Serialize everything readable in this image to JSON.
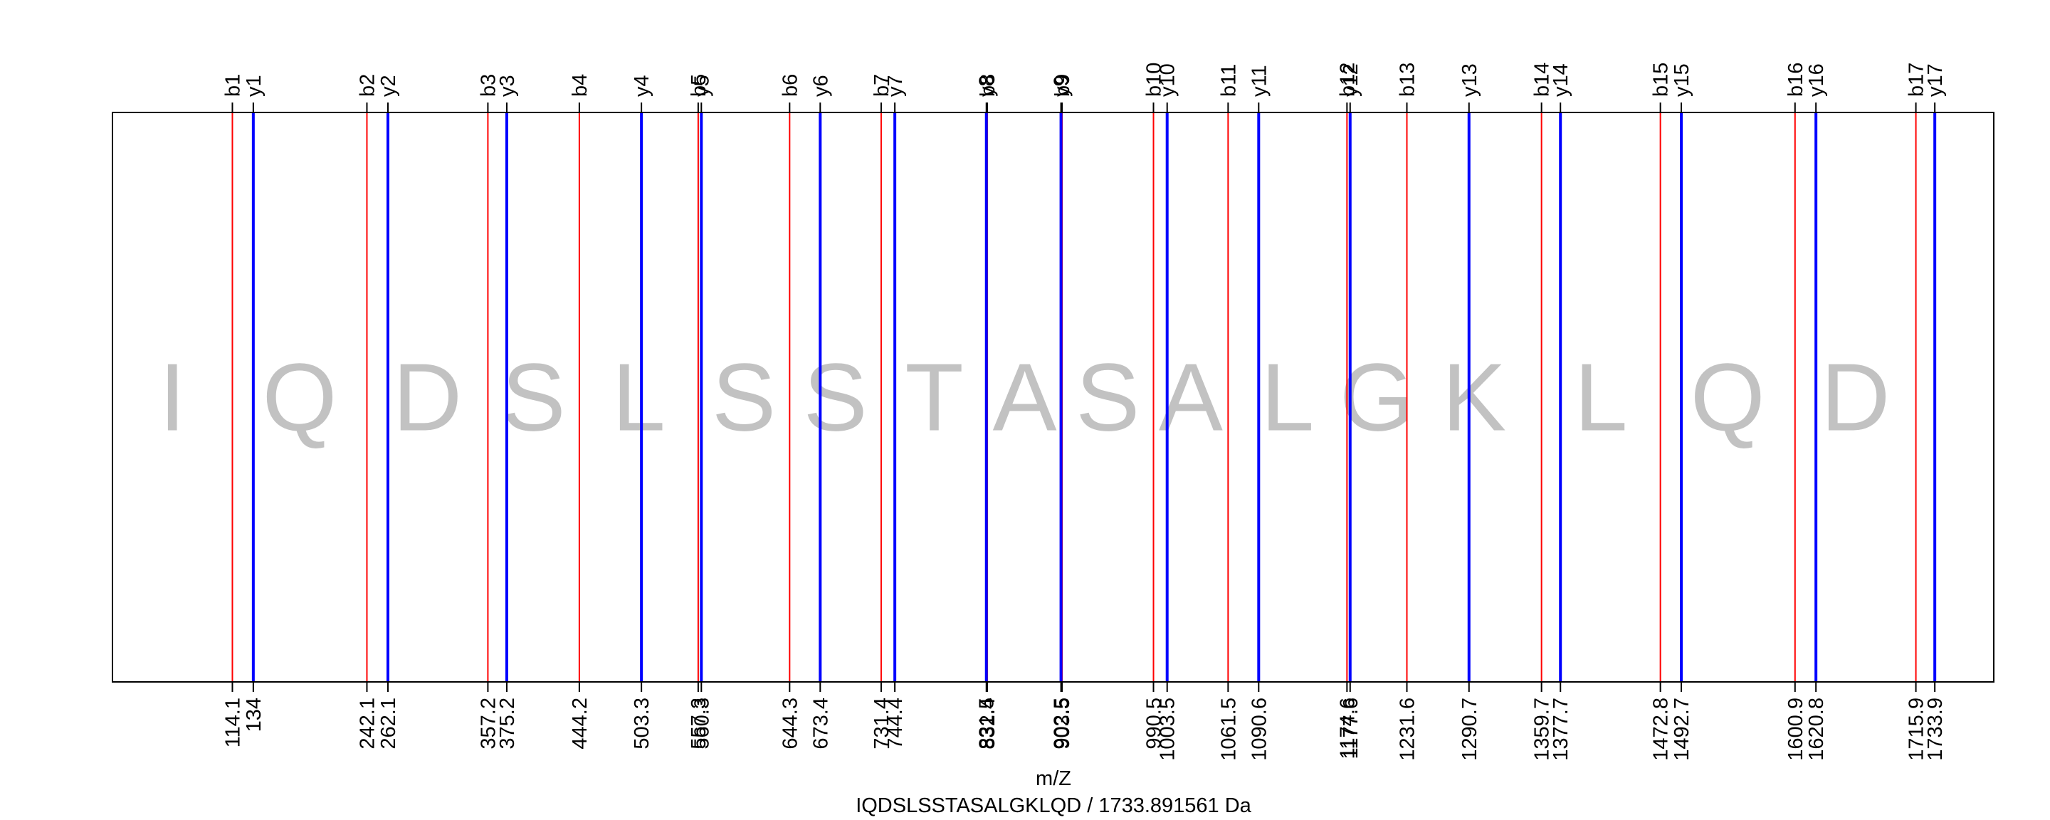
{
  "chart_data": {
    "type": "line",
    "xlabel": "m/Z",
    "subtitle": "IQDSLSSTASALGKLQD / 1733.891561 Da",
    "xlim": [
      0,
      1790
    ],
    "colors": {
      "b": "#ff0000",
      "y": "#0000ff",
      "residue": "#c2c2c2",
      "frame": "#000000"
    },
    "sequence": [
      "I",
      "Q",
      "D",
      "S",
      "L",
      "S",
      "S",
      "T",
      "A",
      "S",
      "A",
      "L",
      "G",
      "K",
      "L",
      "Q",
      "D"
    ],
    "b_ions": [
      {
        "label": "b1",
        "mz": 114.1
      },
      {
        "label": "b2",
        "mz": 242.1
      },
      {
        "label": "b3",
        "mz": 357.2
      },
      {
        "label": "b4",
        "mz": 444.2
      },
      {
        "label": "b5",
        "mz": 557.3
      },
      {
        "label": "b6",
        "mz": 644.3
      },
      {
        "label": "b7",
        "mz": 731.4
      },
      {
        "label": "b8",
        "mz": 832.4
      },
      {
        "label": "b9",
        "mz": 903.5
      },
      {
        "label": "b10",
        "mz": 990.5
      },
      {
        "label": "b11",
        "mz": 1061.5
      },
      {
        "label": "b12",
        "mz": 1174.6
      },
      {
        "label": "b13",
        "mz": 1231.6
      },
      {
        "label": "b14",
        "mz": 1359.7
      },
      {
        "label": "b15",
        "mz": 1472.8
      },
      {
        "label": "b16",
        "mz": 1600.9
      },
      {
        "label": "b17",
        "mz": 1715.9
      }
    ],
    "y_ions": [
      {
        "label": "y1",
        "mz": 134
      },
      {
        "label": "y2",
        "mz": 262.1
      },
      {
        "label": "y3",
        "mz": 375.2
      },
      {
        "label": "y4",
        "mz": 503.3
      },
      {
        "label": "y5",
        "mz": 560.3
      },
      {
        "label": "y6",
        "mz": 673.4
      },
      {
        "label": "y7",
        "mz": 744.4
      },
      {
        "label": "y8",
        "mz": 831.5
      },
      {
        "label": "y9",
        "mz": 902.5
      },
      {
        "label": "y10",
        "mz": 1003.5
      },
      {
        "label": "y11",
        "mz": 1090.6
      },
      {
        "label": "y12",
        "mz": 1177.6
      },
      {
        "label": "y13",
        "mz": 1290.7
      },
      {
        "label": "y14",
        "mz": 1377.7
      },
      {
        "label": "y15",
        "mz": 1492.7
      },
      {
        "label": "y16",
        "mz": 1620.8
      },
      {
        "label": "y17",
        "mz": 1733.9
      }
    ]
  }
}
